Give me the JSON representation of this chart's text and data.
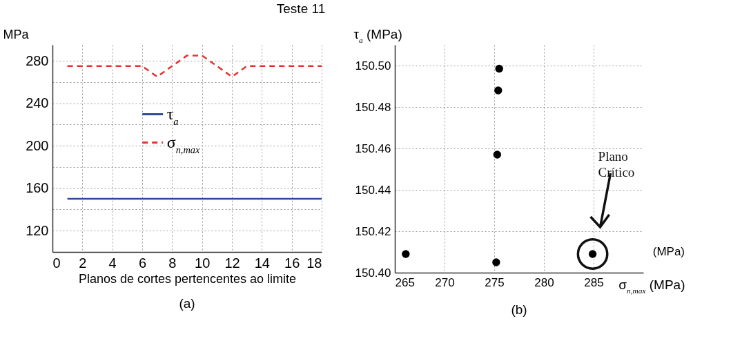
{
  "chart_data": [
    {
      "type": "line",
      "title": "Teste 11",
      "xlabel": "Planos de cortes pertencentes ao limite",
      "ylabel": "MPa",
      "annotations": [
        "(a)"
      ],
      "x": [
        1,
        2,
        3,
        4,
        5,
        6,
        7,
        8,
        9,
        10,
        11,
        12,
        13,
        14,
        15,
        16,
        17,
        18
      ],
      "series": [
        {
          "name": "τ$_{a}$",
          "color": "#2e4a9a",
          "line_style": "solid",
          "values": [
            150,
            150,
            150,
            150,
            150,
            150,
            150,
            150,
            150,
            150,
            150,
            150,
            150,
            150,
            150,
            150,
            150,
            150
          ]
        },
        {
          "name": "σ$_{n,max}$",
          "color": "#e8312f",
          "line_style": "dashed",
          "values": [
            275,
            275,
            275,
            275,
            275,
            275,
            265,
            275,
            285,
            285,
            275,
            265,
            275,
            275,
            275,
            275,
            275,
            275
          ]
        }
      ],
      "xlim": [
        0,
        18
      ],
      "xticks": [
        0,
        2,
        4,
        6,
        8,
        10,
        12,
        14,
        16,
        18
      ],
      "ylim": [
        100,
        295
      ],
      "yticks": [
        120,
        {
          "value": 140,
          "label": null
        },
        160,
        {
          "value": 180,
          "label": null
        },
        200,
        {
          "value": 220,
          "label": null
        },
        240,
        {
          "value": 260,
          "label": null
        },
        280
      ],
      "grid": true,
      "legend": "top"
    },
    {
      "type": "scatter",
      "xlabel": "σ$_{n,max}$ (MPa)",
      "ylabel": "τ$_{a}$ (MPa)",
      "annotations": [
        "(b)",
        "Plano Crítico",
        "(MPa)"
      ],
      "marker": "circle",
      "series": [
        {
          "color": "#000000",
          "x": [
            266.1,
            275.2,
            275.3,
            275.4,
            275.5,
            284.9
          ],
          "values": [
            150.409,
            150.405,
            150.457,
            150.488,
            150.4985,
            150.409
          ]
        }
      ],
      "xlim": [
        265,
        290
      ],
      "xticks": [
        265,
        270,
        275,
        280,
        285
      ],
      "ylim": [
        150.4,
        150.51
      ],
      "yticks": [
        {
          "value": 150.4,
          "label": "150.40"
        },
        150.42,
        150.44,
        150.46,
        150.48,
        {
          "value": 150.5,
          "label": "150.50"
        }
      ],
      "grid": true
    }
  ]
}
